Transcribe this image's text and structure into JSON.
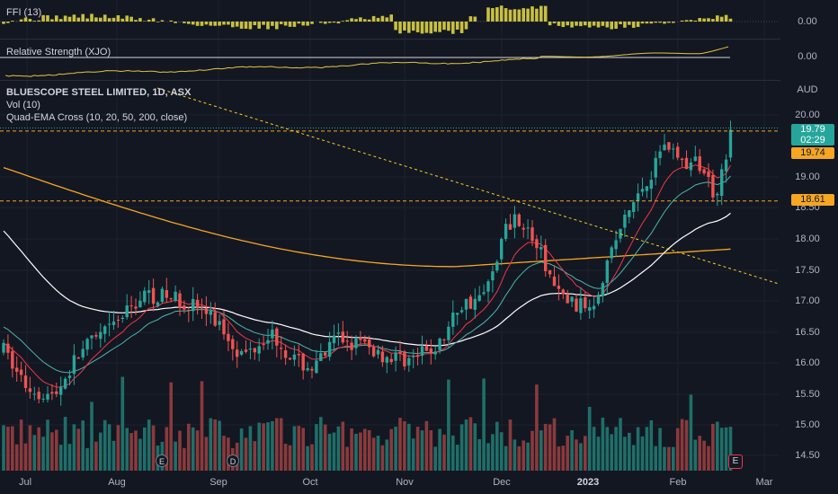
{
  "colors": {
    "background": "#131722",
    "grid": "#1e222d",
    "up": "#26a69a",
    "down": "#ef5350",
    "vol_up": "#1f6f69",
    "vol_down": "#8a3a3c",
    "ema10": "#f23645",
    "ema20": "#4db6ac",
    "ema50": "#ffffff",
    "ema200": "#f5a623",
    "ffi": "#c8c040",
    "rs_line": "#e6c43c",
    "current_price": "#26a69a",
    "level_line": "#f5a623",
    "trendline": "#f5d020"
  },
  "panes": {
    "ffi": {
      "label": "FFI (13)",
      "value": "0.00"
    },
    "rs": {
      "label": "Relative Strength (XJO)",
      "value": "0.00"
    },
    "main": {
      "symbol": "BLUESCOPE STEEL LIMITED, 1D, ASX",
      "indicators": [
        "Vol (10)",
        "Quad-EMA Cross (10, 20, 50, 200, close)"
      ],
      "currency": "AUD"
    }
  },
  "price_axis": [
    "20.00",
    "19.00",
    "18.50",
    "18.00",
    "17.50",
    "17.00",
    "16.50",
    "16.00",
    "15.50",
    "15.00",
    "14.50"
  ],
  "time_axis": [
    {
      "label": "Jul",
      "bold": false
    },
    {
      "label": "Aug",
      "bold": false
    },
    {
      "label": "Sep",
      "bold": false
    },
    {
      "label": "Oct",
      "bold": false
    },
    {
      "label": "Nov",
      "bold": false
    },
    {
      "label": "Dec",
      "bold": false
    },
    {
      "label": "2023",
      "bold": true
    },
    {
      "label": "Feb",
      "bold": false
    },
    {
      "label": "Mar",
      "bold": false
    }
  ],
  "badges": {
    "last_price": "19.79",
    "countdown": "02:29",
    "level_high": "19.74",
    "level_low": "18.61"
  },
  "events": [
    {
      "icon": "earnings-icon",
      "label": "E"
    },
    {
      "icon": "dividend-icon",
      "label": "D"
    },
    {
      "icon": "earnings-icon",
      "label": "E"
    }
  ],
  "chart_data": {
    "type": "candlestick",
    "title": "BLUESCOPE STEEL LIMITED, 1D, ASX",
    "ylabel": "AUD",
    "ylim": [
      14.3,
      20.3
    ],
    "levels": [
      19.74,
      18.61
    ],
    "last_price": 19.79
  }
}
